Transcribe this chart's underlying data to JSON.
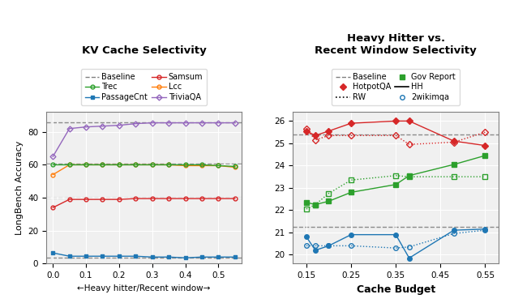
{
  "left": {
    "title": "KV Cache Selectivity",
    "xlabel": "←Heavy hitter/Recent window→",
    "ylabel": "LongBench Accuracy",
    "x": [
      0.0,
      0.05,
      0.1,
      0.15,
      0.2,
      0.25,
      0.3,
      0.35,
      0.4,
      0.45,
      0.5,
      0.55
    ],
    "baselines": {
      "TriviaQA": 86.0,
      "Lcc": 60.5,
      "Samsum": 40.0,
      "PassageCnt": 3.5
    },
    "series": {
      "PassageCnt": {
        "color": "#1f77b4",
        "marker": "s",
        "values": [
          6.5,
          4.5,
          4.5,
          4.5,
          4.5,
          4.5,
          4.0,
          4.0,
          3.5,
          4.0,
          4.0,
          4.0
        ]
      },
      "Lcc": {
        "color": "#ff7f0e",
        "marker": "o",
        "values": [
          54.0,
          60.0,
          60.0,
          60.0,
          60.0,
          60.0,
          60.0,
          60.0,
          59.5,
          59.5,
          59.5,
          58.5
        ]
      },
      "Trec": {
        "color": "#2ca02c",
        "marker": "o",
        "values": [
          60.0,
          60.0,
          60.0,
          60.0,
          60.0,
          60.0,
          60.0,
          60.0,
          60.0,
          60.0,
          59.5,
          59.0
        ]
      },
      "Samsum": {
        "color": "#d62728",
        "marker": "o",
        "values": [
          34.0,
          39.0,
          39.0,
          39.0,
          39.0,
          39.5,
          39.5,
          39.5,
          39.5,
          39.5,
          39.5,
          39.5
        ]
      },
      "TriviaQA": {
        "color": "#9467bd",
        "marker": "D",
        "values": [
          65.0,
          82.0,
          83.0,
          83.5,
          84.0,
          85.0,
          85.5,
          85.5,
          85.5,
          85.5,
          85.5,
          85.5
        ]
      }
    },
    "ylim": [
      0,
      92
    ],
    "yticks": [
      0,
      20,
      40,
      60,
      80
    ],
    "xlim": [
      -0.02,
      0.57
    ],
    "xticks": [
      0.0,
      0.1,
      0.2,
      0.3,
      0.4,
      0.5
    ]
  },
  "right": {
    "title": "Heavy Hitter vs.\nRecent Window Selectivity",
    "xlabel": "Cache Budget",
    "x_hh": [
      0.15,
      0.17,
      0.2,
      0.25,
      0.35,
      0.38,
      0.48,
      0.55
    ],
    "x_rw": [
      0.15,
      0.17,
      0.2,
      0.25,
      0.35,
      0.38,
      0.48,
      0.55
    ],
    "baselines": {
      "HotpotQA": 25.4,
      "GovReport": 21.25
    },
    "series_hh": {
      "HotpotQA": {
        "color": "#d62728",
        "marker": "D",
        "values": [
          25.55,
          25.35,
          25.55,
          25.9,
          26.0,
          26.0,
          25.1,
          24.9
        ]
      },
      "GovReport": {
        "color": "#2ca02c",
        "marker": "s",
        "values": [
          22.35,
          22.25,
          22.4,
          22.8,
          23.15,
          23.55,
          24.05,
          24.45
        ]
      },
      "2wikimqa": {
        "color": "#1f77b4",
        "marker": "o",
        "values": [
          20.8,
          20.2,
          20.4,
          20.9,
          20.9,
          19.85,
          21.1,
          21.15
        ]
      }
    },
    "series_rw": {
      "HotpotQA": {
        "color": "#d62728",
        "marker": "D",
        "values": [
          25.65,
          25.15,
          25.35,
          25.35,
          25.35,
          24.95,
          25.05,
          25.5
        ]
      },
      "GovReport": {
        "color": "#2ca02c",
        "marker": "s",
        "values": [
          22.05,
          22.25,
          22.75,
          23.35,
          23.55,
          23.5,
          23.5,
          23.5
        ]
      },
      "2wikimqa": {
        "color": "#1f77b4",
        "marker": "o",
        "values": [
          20.4,
          20.4,
          20.4,
          20.4,
          20.3,
          20.35,
          20.95,
          21.1
        ]
      }
    },
    "ylim": [
      19.6,
      26.4
    ],
    "yticks": [
      20,
      21,
      22,
      23,
      24,
      25,
      26
    ],
    "xlim": [
      0.12,
      0.58
    ],
    "xticks": [
      0.15,
      0.25,
      0.35,
      0.45,
      0.55
    ]
  }
}
